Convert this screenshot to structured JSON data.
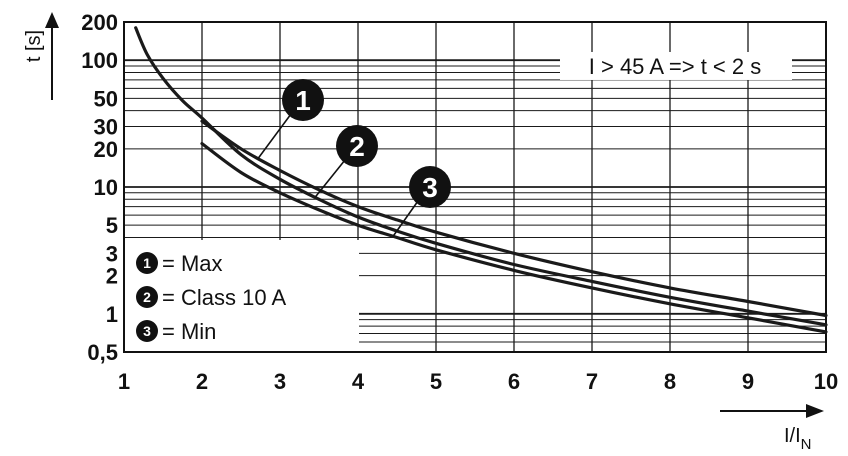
{
  "chart_data": {
    "type": "line",
    "y_scale": "log",
    "x_range": [
      1,
      10
    ],
    "y_range": [
      0.5,
      200
    ],
    "x_ticks": [
      "1",
      "2",
      "3",
      "4",
      "5",
      "6",
      "7",
      "8",
      "9",
      "10"
    ],
    "y_ticks": [
      {
        "value": 200,
        "label": "200"
      },
      {
        "value": 100,
        "label": "100"
      },
      {
        "value": 50,
        "label": "50"
      },
      {
        "value": 30,
        "label": "30"
      },
      {
        "value": 20,
        "label": "20"
      },
      {
        "value": 10,
        "label": "10"
      },
      {
        "value": 5,
        "label": "5"
      },
      {
        "value": 3,
        "label": "3"
      },
      {
        "value": 2,
        "label": "2"
      },
      {
        "value": 1,
        "label": "1"
      },
      {
        "value": 0.5,
        "label": "0,5"
      }
    ],
    "ylabel": "t [s]",
    "xlabel_main": "I/I",
    "xlabel_sub": "N",
    "annotation": "I > 45 A => t < 2 s",
    "grid": true,
    "series": [
      {
        "name": "Max",
        "marker": "1",
        "x": [
          2,
          2.5,
          3,
          3.5,
          4,
          4.5,
          5,
          6,
          7,
          8,
          9,
          10
        ],
        "y": [
          33,
          20,
          13.5,
          9.5,
          7,
          5.5,
          4.4,
          3,
          2.15,
          1.6,
          1.25,
          0.97
        ]
      },
      {
        "name": "Class 10 A",
        "marker": "2",
        "x": [
          1.15,
          1.3,
          1.5,
          1.75,
          2,
          2.5,
          3,
          3.5,
          4,
          4.5,
          5,
          6,
          7,
          8,
          9,
          10
        ],
        "y": [
          180,
          110,
          72,
          48,
          35,
          18,
          11.5,
          8,
          5.8,
          4.5,
          3.6,
          2.45,
          1.8,
          1.35,
          1.05,
          0.82
        ]
      },
      {
        "name": "Min",
        "marker": "3",
        "x": [
          2,
          2.5,
          3,
          3.5,
          4,
          4.5,
          5,
          6,
          7,
          8,
          9,
          10
        ],
        "y": [
          22,
          13,
          9,
          6.6,
          5,
          4,
          3.2,
          2.2,
          1.6,
          1.2,
          0.93,
          0.72
        ]
      }
    ],
    "legend": [
      {
        "marker": "1",
        "label": "= Max"
      },
      {
        "marker": "2",
        "label": "= Class 10 A"
      },
      {
        "marker": "3",
        "label": "= Min"
      }
    ],
    "colors": {
      "curve": "#1a1a1a",
      "grid": "#1a1a1a",
      "marker_fill": "#111111",
      "background": "#ffffff"
    }
  }
}
